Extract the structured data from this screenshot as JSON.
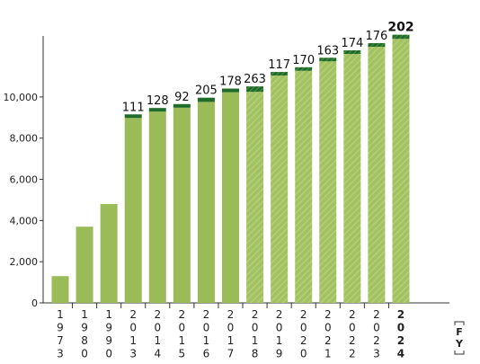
{
  "chart_data": {
    "type": "bar",
    "stacked": true,
    "categories": [
      "1973",
      "1980",
      "1990",
      "2013",
      "2014",
      "2015",
      "2016",
      "2017",
      "2018",
      "2019",
      "2020",
      "2021",
      "2022",
      "2023",
      "2024"
    ],
    "series": [
      {
        "values": [
          1300,
          3700,
          4800,
          8980,
          9290,
          9480,
          9760,
          10230,
          10250,
          11040,
          11270,
          11730,
          12090,
          12440,
          12820
        ]
      },
      {
        "values": [
          0,
          0,
          0,
          111,
          128,
          92,
          205,
          178,
          263,
          117,
          170,
          163,
          174,
          176,
          202
        ]
      }
    ],
    "increment_labels": [
      "",
      "",
      "",
      "111",
      "128",
      "92",
      "205",
      "178",
      "263",
      "117",
      "170",
      "163",
      "174",
      "176",
      "202"
    ],
    "highlight_category": "2024",
    "yticks": [
      "0",
      "2,000",
      "4,000",
      "6,000",
      "8,000",
      "10,000"
    ],
    "ytick_values": [
      0,
      2000,
      4000,
      6000,
      8000,
      10000
    ],
    "ylim": [
      0,
      13400
    ],
    "x_unit_label": "FY",
    "colors": {
      "base": "#9bbb59",
      "increment": "#1e6b2a",
      "hatched_from": "2018"
    },
    "grid": false
  }
}
